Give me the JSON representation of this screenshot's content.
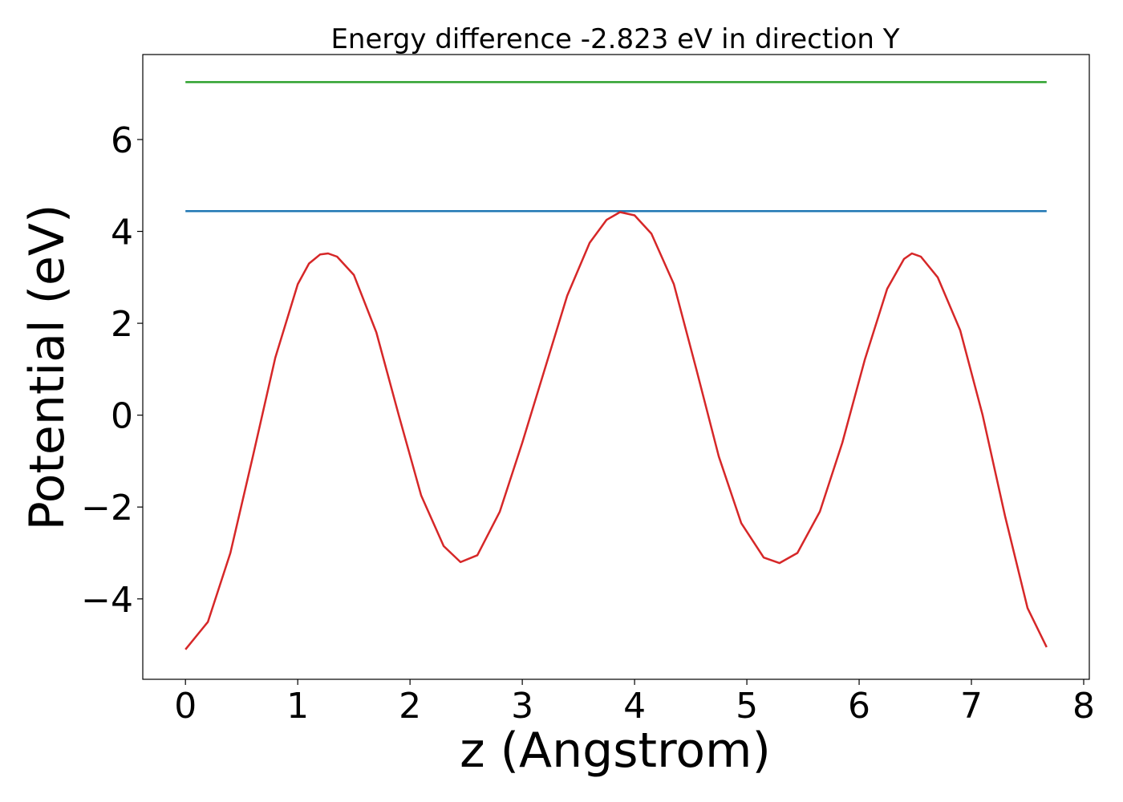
{
  "chart_data": {
    "type": "line",
    "title": "Energy difference -2.823 eV in direction Y",
    "xlabel": "z (Angstrom)",
    "ylabel": "Potential (eV)",
    "xlim": [
      -0.38,
      8.05
    ],
    "ylim": [
      -5.75,
      7.85
    ],
    "xticks": [
      0,
      1,
      2,
      3,
      4,
      5,
      6,
      7,
      8
    ],
    "xtick_labels": [
      "0",
      "1",
      "2",
      "3",
      "4",
      "5",
      "6",
      "7",
      "8"
    ],
    "yticks": [
      -4,
      -2,
      0,
      2,
      4,
      6
    ],
    "ytick_labels": [
      "−4",
      "−2",
      "0",
      "2",
      "4",
      "6"
    ],
    "grid": false,
    "series": [
      {
        "color": "#2ca02c",
        "x": [
          0,
          7.67
        ],
        "y": [
          7.25,
          7.25
        ]
      },
      {
        "color": "#1f77b4",
        "x": [
          0,
          7.67
        ],
        "y": [
          4.44,
          4.44
        ]
      },
      {
        "color": "#d62728",
        "x": [
          0.0,
          0.2,
          0.4,
          0.6,
          0.8,
          1.0,
          1.1,
          1.2,
          1.27,
          1.35,
          1.5,
          1.7,
          1.9,
          2.1,
          2.3,
          2.45,
          2.6,
          2.8,
          3.0,
          3.2,
          3.4,
          3.6,
          3.75,
          3.87,
          4.0,
          4.15,
          4.35,
          4.55,
          4.75,
          4.95,
          5.15,
          5.29,
          5.45,
          5.65,
          5.85,
          6.05,
          6.25,
          6.4,
          6.47,
          6.55,
          6.7,
          6.9,
          7.1,
          7.3,
          7.5,
          7.67
        ],
        "y": [
          -5.1,
          -4.5,
          -3.0,
          -0.9,
          1.25,
          2.85,
          3.3,
          3.5,
          3.52,
          3.45,
          3.05,
          1.8,
          0.0,
          -1.75,
          -2.85,
          -3.2,
          -3.05,
          -2.1,
          -0.6,
          1.0,
          2.6,
          3.75,
          4.25,
          4.42,
          4.35,
          3.95,
          2.85,
          1.0,
          -0.9,
          -2.35,
          -3.1,
          -3.22,
          -3.0,
          -2.1,
          -0.6,
          1.2,
          2.75,
          3.4,
          3.52,
          3.45,
          3.0,
          1.85,
          0.0,
          -2.2,
          -4.2,
          -5.05
        ]
      }
    ]
  }
}
